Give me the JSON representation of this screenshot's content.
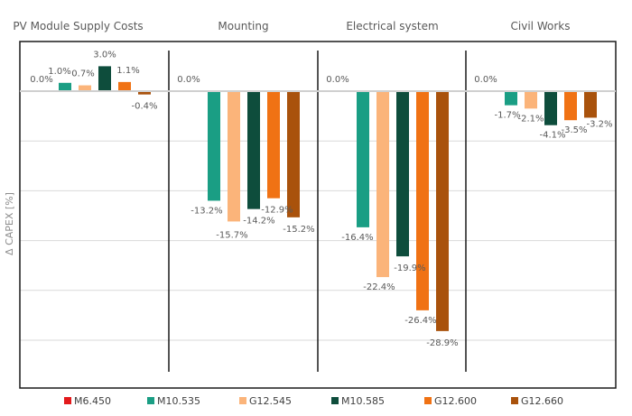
{
  "chart_data": {
    "type": "bar",
    "categories": [
      "PV Module Supply Costs",
      "Mounting",
      "Electrical system",
      "Civil Works"
    ],
    "ylabel": "Δ CAPEX [%]",
    "ylim": [
      -34,
      9
    ],
    "grid": true,
    "legend_position": "bottom",
    "series": [
      {
        "name": "M6.450",
        "color": "#e31a1c",
        "values": [
          0.0,
          0.0,
          0.0,
          0.0
        ],
        "labels": [
          "0.0%",
          "0.0%",
          "0.0%",
          "0.0%"
        ]
      },
      {
        "name": "M10.535",
        "color": "#1a9e84",
        "values": [
          1.0,
          -13.2,
          -16.4,
          -1.7
        ],
        "labels": [
          "1.0%",
          "-13.2%",
          "-16.4%",
          "-1.7%"
        ]
      },
      {
        "name": "G12.545",
        "color": "#fbb47a",
        "values": [
          0.7,
          -15.7,
          -22.4,
          -2.1
        ],
        "labels": [
          "0.7%",
          "-15.7%",
          "-22.4%",
          "-2.1%"
        ]
      },
      {
        "name": "M10.585",
        "color": "#0e4d3c",
        "values": [
          3.0,
          -14.2,
          -19.9,
          -4.1
        ],
        "labels": [
          "3.0%",
          "-14.2%",
          "-19.9%",
          "-4.1%"
        ]
      },
      {
        "name": "G12.600",
        "color": "#f07214",
        "values": [
          1.1,
          -12.9,
          -26.4,
          -3.5
        ],
        "labels": [
          "1.1%",
          "-12.9%",
          "-26.4%",
          "-3.5%"
        ]
      },
      {
        "name": "G12.660",
        "color": "#a9520c",
        "values": [
          -0.4,
          -15.2,
          -28.9,
          -3.2
        ],
        "labels": [
          "-0.4%",
          "-15.2%",
          "-28.9%",
          "-3.2%"
        ]
      }
    ]
  }
}
